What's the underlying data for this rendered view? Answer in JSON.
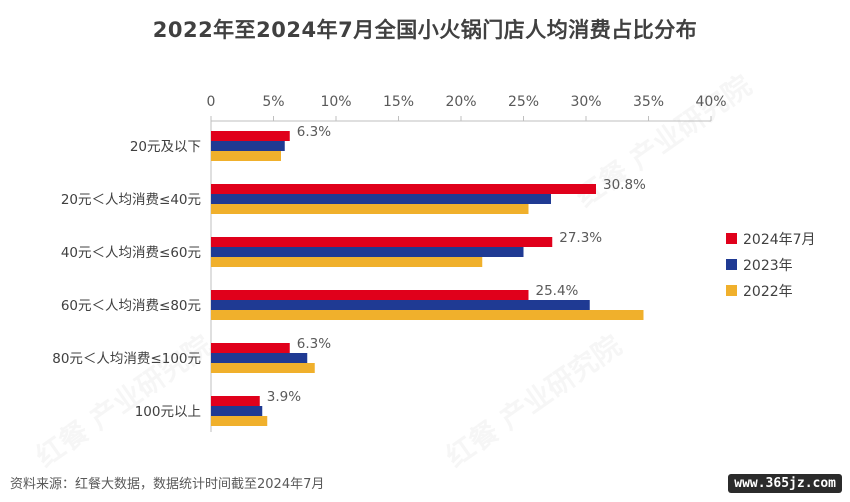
{
  "title": "2022年至2024年7月全国小火锅门店人均消费占比分布",
  "source": "资料来源：红餐大数据，数据统计时间截至2024年7月",
  "site_badge": "www.365jz.com",
  "watermark": "红餐 产业研究院",
  "chart_data": {
    "type": "bar",
    "orientation": "horizontal",
    "title": "2022年至2024年7月全国小火锅门店人均消费占比分布",
    "categories": [
      "20元及以下",
      "20元＜人均消费≤40元",
      "40元＜人均消费≤60元",
      "60元＜人均消费≤80元",
      "80元＜人均消费≤100元",
      "100元以上"
    ],
    "xlim": [
      0,
      40
    ],
    "ticks": [
      0,
      5,
      10,
      15,
      20,
      25,
      30,
      35,
      40
    ],
    "tick_labels": [
      "0",
      "5%",
      "10%",
      "15%",
      "20%",
      "25%",
      "30%",
      "35%",
      "40%"
    ],
    "axis_position": "top",
    "legend_position": "right",
    "series": [
      {
        "name": "2024年7月",
        "color": "#e0001b",
        "values": [
          6.3,
          30.8,
          27.3,
          25.4,
          6.3,
          3.9
        ],
        "labels": [
          "6.3%",
          "30.8%",
          "27.3%",
          "25.4%",
          "6.3%",
          "3.9%"
        ]
      },
      {
        "name": "2023年",
        "color": "#1f3a93",
        "values": [
          5.9,
          27.2,
          25.0,
          30.3,
          7.7,
          4.1
        ]
      },
      {
        "name": "2022年",
        "color": "#f0b02c",
        "values": [
          5.6,
          25.4,
          21.7,
          34.6,
          8.3,
          4.5
        ]
      }
    ]
  }
}
